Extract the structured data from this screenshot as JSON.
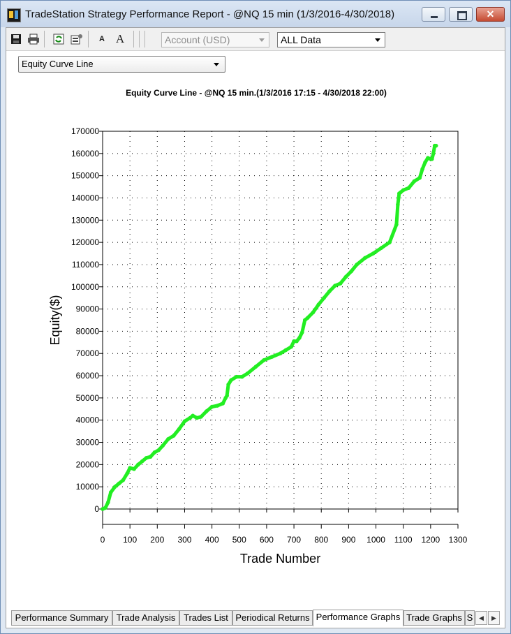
{
  "window": {
    "title": "TradeStation Strategy Performance Report - @NQ 15 min (1/3/2016-4/30/2018)",
    "close_symbol": "✕"
  },
  "toolbar": {
    "icons": [
      "save-icon",
      "print-icon",
      "refresh-icon",
      "settings-icon",
      "font-decrease-icon",
      "font-increase-icon"
    ],
    "font_small_label": "A",
    "font_large_label": "A",
    "account_select": "Account (USD)",
    "data_select": "ALL Data"
  },
  "view_select": "Equity Curve Line",
  "tabs": [
    {
      "label": "Performance Summary",
      "active": false
    },
    {
      "label": "Trade Analysis",
      "active": false
    },
    {
      "label": "Trades List",
      "active": false
    },
    {
      "label": "Periodical Returns",
      "active": false
    },
    {
      "label": "Performance Graphs",
      "active": true
    },
    {
      "label": "Trade Graphs",
      "active": false
    },
    {
      "label": "S",
      "active": false
    }
  ],
  "colors": {
    "series": "#22ee22",
    "grid": "#000000"
  },
  "chart_data": {
    "type": "line",
    "title": "Equity Curve Line - @NQ 15 min.(1/3/2016 17:15 - 4/30/2018 22:00)",
    "xlabel": "Trade Number",
    "ylabel": "Equity($)",
    "xlim": [
      0,
      1300
    ],
    "ylim": [
      0,
      170000
    ],
    "x_ticks": [
      "0",
      "100",
      "200",
      "300",
      "400",
      "500",
      "600",
      "700",
      "800",
      "900",
      "1000",
      "1100",
      "1200",
      "1300"
    ],
    "y_ticks": [
      "0",
      "10000",
      "20000",
      "30000",
      "40000",
      "50000",
      "60000",
      "70000",
      "80000",
      "90000",
      "100000",
      "110000",
      "120000",
      "130000",
      "140000",
      "150000",
      "160000",
      "170000"
    ],
    "grid": true,
    "series": [
      {
        "x": [
          0,
          10,
          20,
          30,
          45,
          60,
          75,
          90,
          100,
          115,
          130,
          145,
          160,
          175,
          190,
          205,
          220,
          240,
          260,
          280,
          300,
          320,
          330,
          345,
          360,
          380,
          400,
          420,
          440,
          450,
          455,
          460,
          470,
          490,
          510,
          530,
          560,
          590,
          620,
          650,
          670,
          690,
          700,
          710,
          720,
          730,
          740,
          750,
          770,
          790,
          810,
          830,
          850,
          870,
          890,
          910,
          930,
          960,
          990,
          1020,
          1050,
          1075,
          1080,
          1085,
          1090,
          1100,
          1120,
          1140,
          1160,
          1170,
          1180,
          1190,
          1200,
          1205,
          1210,
          1215,
          1220
        ],
        "y": [
          0,
          500,
          3000,
          7500,
          10000,
          11500,
          13000,
          16000,
          18500,
          18000,
          20000,
          21500,
          23000,
          23500,
          25500,
          26500,
          28500,
          31500,
          33000,
          36000,
          39500,
          41000,
          42000,
          41000,
          41500,
          44000,
          46000,
          46500,
          47500,
          50000,
          51000,
          56000,
          58000,
          59500,
          59500,
          61000,
          64000,
          67000,
          68500,
          70000,
          71500,
          73000,
          75500,
          75500,
          77000,
          79500,
          85000,
          86000,
          88500,
          92000,
          95000,
          98000,
          100500,
          101500,
          104500,
          107000,
          110000,
          113000,
          115000,
          117500,
          120000,
          128000,
          137000,
          142000,
          142500,
          143500,
          144500,
          147500,
          149000,
          153000,
          156000,
          158000,
          157500,
          157500,
          160000,
          163500,
          163500
        ]
      }
    ]
  }
}
